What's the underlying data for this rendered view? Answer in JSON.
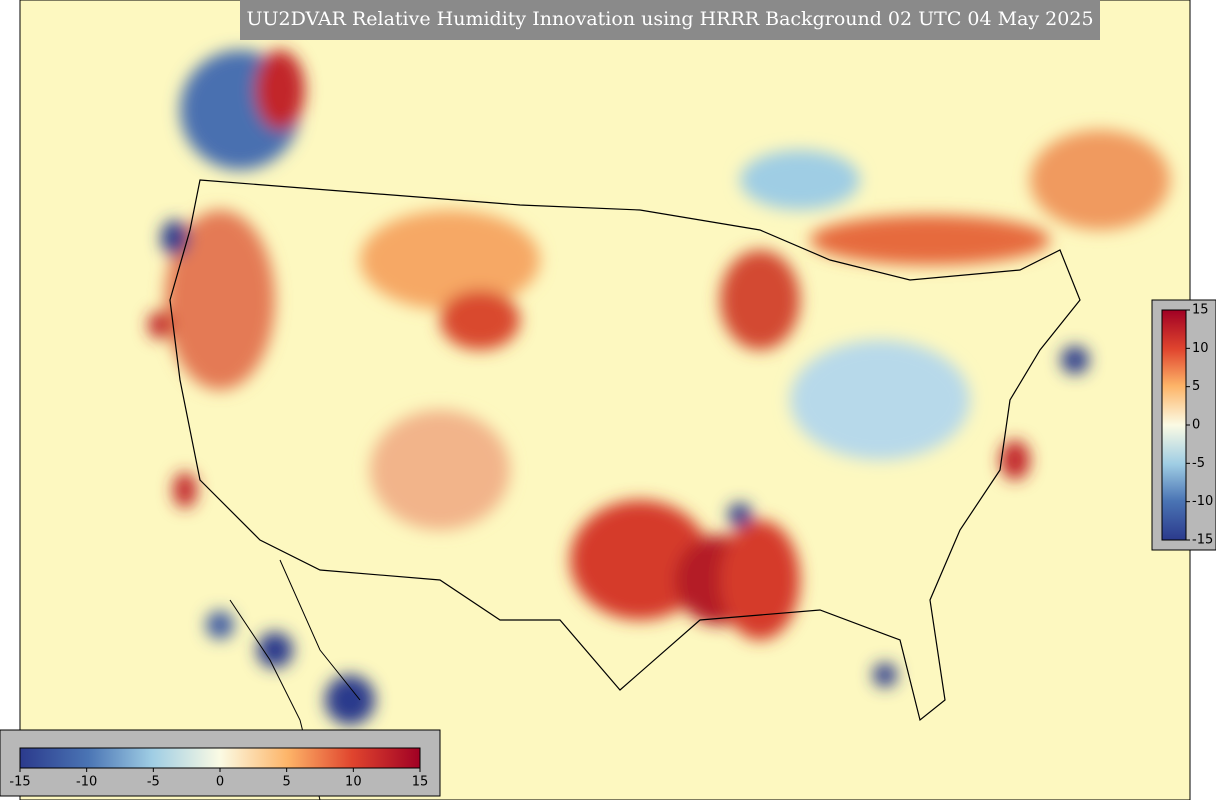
{
  "title": "UU2DVAR Relative Humidity Innovation using HRRR Background 02 UTC 04 May 2025",
  "colorbars": [
    {
      "orientation": "horizontal",
      "range": [
        -15,
        15
      ],
      "ticks": [
        -15,
        -10,
        -5,
        0,
        5,
        10,
        15
      ]
    },
    {
      "orientation": "vertical",
      "range": [
        -15,
        15
      ],
      "ticks": [
        -15,
        -10,
        -5,
        0,
        5,
        10,
        15
      ]
    }
  ]
}
